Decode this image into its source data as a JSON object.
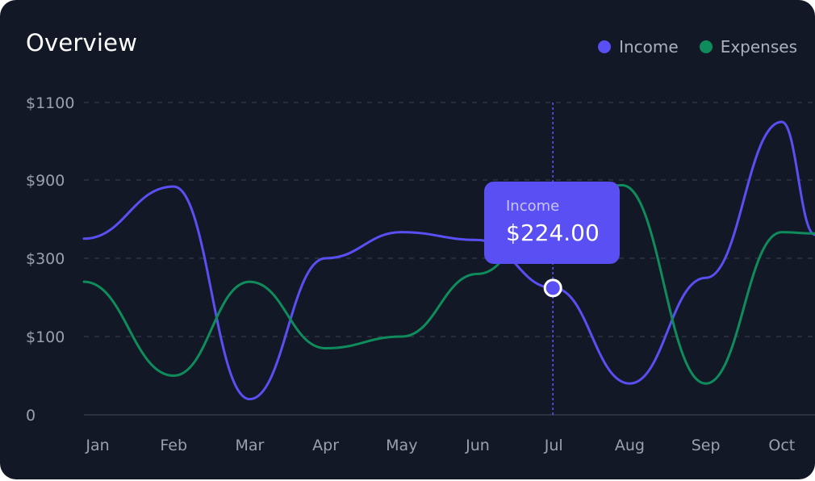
{
  "header": {
    "title": "Overview"
  },
  "legend": [
    {
      "name": "Income",
      "color": "#5a4ff2"
    },
    {
      "name": "Expenses",
      "color": "#0f8c5b"
    }
  ],
  "tooltip": {
    "label": "Income",
    "value": "$224.00",
    "month": "Jul"
  },
  "chart_data": {
    "type": "line",
    "title": "Overview",
    "categories": [
      "Jan",
      "Feb",
      "Mar",
      "Apr",
      "May",
      "Jun",
      "Jul",
      "Aug",
      "Sep",
      "Oct"
    ],
    "y_tick_labels": [
      "0",
      "$100",
      "$300",
      "$900",
      "$1100"
    ],
    "grid": true,
    "legend_position": "top-right",
    "series": [
      {
        "name": "Income",
        "color": "$5a4ff2",
        "x": [
          "Jan",
          "Feb",
          "Mar",
          "Apr",
          "May",
          "Jun",
          "Jul",
          "Aug",
          "Sep",
          "Oct"
        ],
        "points": [
          [
            0,
            450
          ],
          [
            1,
            850
          ],
          [
            2,
            20
          ],
          [
            3,
            300
          ],
          [
            4,
            500
          ],
          [
            5,
            440
          ],
          [
            6,
            224
          ],
          [
            7,
            40
          ],
          [
            8,
            250
          ],
          [
            9,
            1050
          ],
          [
            9.5,
            480
          ]
        ]
      },
      {
        "name": "Expenses",
        "color": "#0f8c5b",
        "points": [
          [
            0,
            240
          ],
          [
            1,
            50
          ],
          [
            2,
            240
          ],
          [
            3,
            85
          ],
          [
            4,
            100
          ],
          [
            5,
            260
          ],
          [
            6,
            700
          ],
          [
            6.9,
            860
          ],
          [
            8,
            40
          ],
          [
            9,
            500
          ],
          [
            9.5,
            490
          ]
        ]
      }
    ]
  }
}
